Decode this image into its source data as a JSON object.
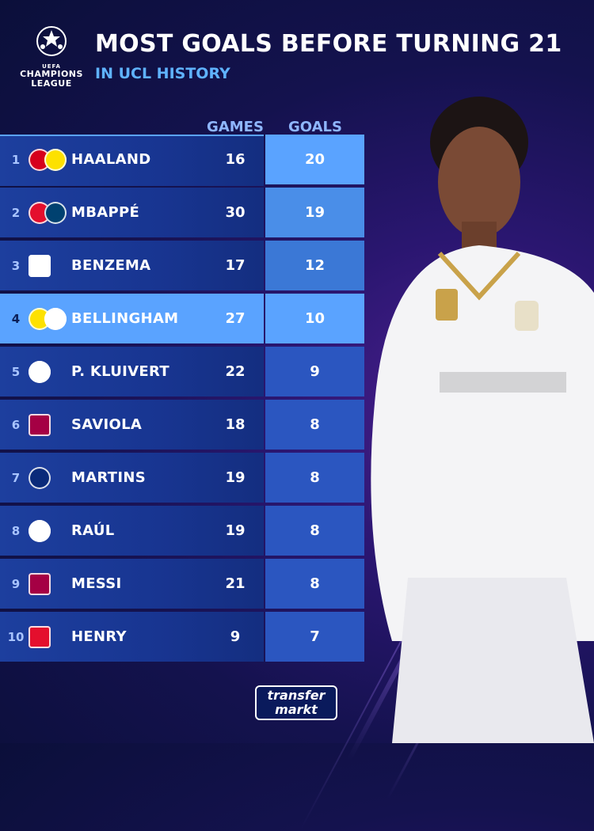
{
  "logo": {
    "uefa": "UEFA",
    "line1": "CHAMPIONS",
    "line2": "LEAGUE"
  },
  "header": {
    "title": "MOST GOALS BEFORE TURNING 21",
    "subtitle": "IN UCL HISTORY"
  },
  "columns": {
    "games": "GAMES",
    "goals": "GOALS"
  },
  "rows": [
    {
      "rank": "1",
      "name": "HAALAND",
      "games": "16",
      "goals": "20"
    },
    {
      "rank": "2",
      "name": "MBAPPÉ",
      "games": "30",
      "goals": "19"
    },
    {
      "rank": "3",
      "name": "BENZEMA",
      "games": "17",
      "goals": "12"
    },
    {
      "rank": "4",
      "name": "BELLINGHAM",
      "games": "27",
      "goals": "10"
    },
    {
      "rank": "5",
      "name": "P. KLUIVERT",
      "games": "22",
      "goals": "9"
    },
    {
      "rank": "6",
      "name": "SAVIOLA",
      "games": "18",
      "goals": "8"
    },
    {
      "rank": "7",
      "name": "MARTINS",
      "games": "19",
      "goals": "8"
    },
    {
      "rank": "8",
      "name": "RAÚL",
      "games": "19",
      "goals": "8"
    },
    {
      "rank": "9",
      "name": "MESSI",
      "games": "21",
      "goals": "8"
    },
    {
      "rank": "10",
      "name": "HENRY",
      "games": "9",
      "goals": "7"
    }
  ],
  "brand": {
    "line1": "transfer",
    "line2": "markt"
  },
  "colors": {
    "accent": "#5aa3ff",
    "background": "#0b0f3a",
    "row": "#1d3f9e"
  }
}
